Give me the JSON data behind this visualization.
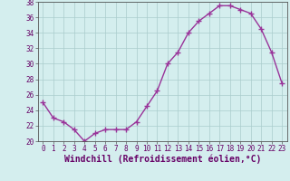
{
  "x": [
    0,
    1,
    2,
    3,
    4,
    5,
    6,
    7,
    8,
    9,
    10,
    11,
    12,
    13,
    14,
    15,
    16,
    17,
    18,
    19,
    20,
    21,
    22,
    23
  ],
  "y": [
    25.0,
    23.0,
    22.5,
    21.5,
    20.0,
    21.0,
    21.5,
    21.5,
    21.5,
    22.5,
    24.5,
    26.5,
    30.0,
    31.5,
    34.0,
    35.5,
    36.5,
    37.5,
    37.5,
    37.0,
    36.5,
    34.5,
    31.5,
    27.5
  ],
  "line_color": "#993399",
  "marker": "+",
  "markersize": 4,
  "linewidth": 1.0,
  "xlabel": "Windchill (Refroidissement éolien,°C)",
  "xlabel_fontsize": 7,
  "background_color": "#d4eeee",
  "grid_color": "#aacccc",
  "ylim": [
    20,
    38
  ],
  "xlim": [
    -0.5,
    23.5
  ],
  "yticks": [
    20,
    22,
    24,
    26,
    28,
    30,
    32,
    34,
    36,
    38
  ],
  "xticks": [
    0,
    1,
    2,
    3,
    4,
    5,
    6,
    7,
    8,
    9,
    10,
    11,
    12,
    13,
    14,
    15,
    16,
    17,
    18,
    19,
    20,
    21,
    22,
    23
  ],
  "tick_fontsize": 5.5
}
